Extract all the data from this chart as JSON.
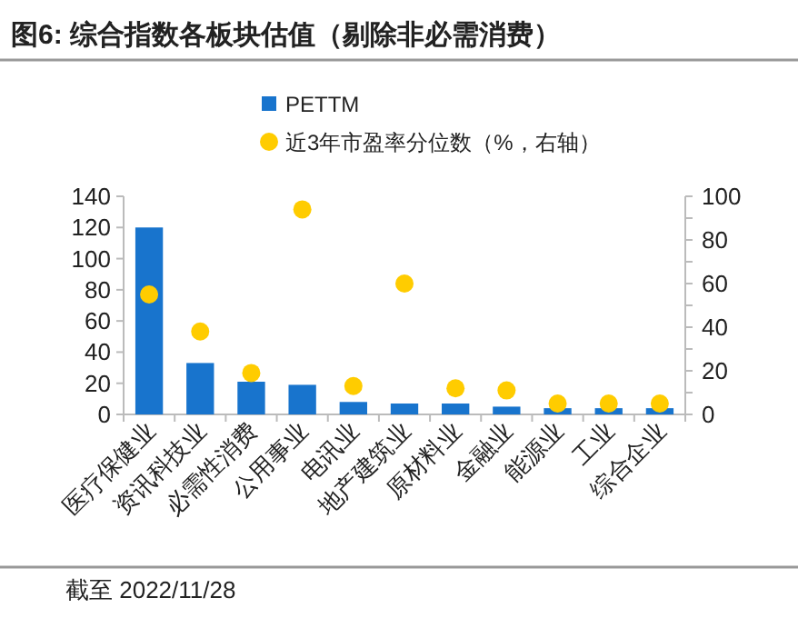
{
  "chart_data": {
    "type": "bar",
    "title": "图6:  综合指数各板块估值（剔除非必需消费）",
    "categories": [
      "医疗保健业",
      "资讯科技业",
      "必需性消费",
      "公用事业",
      "电讯业",
      "地产建筑业",
      "原材料业",
      "金融业",
      "能源业",
      "工业",
      "综合企业"
    ],
    "series": [
      {
        "name": "PETTM",
        "color": "#1874cd",
        "values": [
          120,
          33,
          21,
          19,
          8,
          7,
          7,
          5,
          4,
          4,
          4
        ]
      },
      {
        "name": "近3年市盈率分位数（%，右轴）",
        "type": "scatter",
        "axis": "y2",
        "color": "#ffcc00",
        "marker": "circle",
        "values": [
          55,
          38,
          19,
          94,
          13,
          60,
          12,
          11,
          5,
          5,
          5
        ]
      }
    ],
    "ylim": [
      0,
      140
    ],
    "yticks": [
      0,
      20,
      40,
      60,
      80,
      100,
      120,
      140
    ],
    "y2lim": [
      0,
      100
    ],
    "y2ticks": [
      0,
      {
        "value": 10,
        "label": null
      },
      20,
      {
        "value": 30,
        "label": null
      },
      40,
      {
        "value": 50,
        "label": null
      },
      60,
      {
        "value": 70,
        "label": null
      },
      80,
      {
        "value": 90,
        "label": null
      },
      100
    ],
    "legend": "top",
    "grid": false,
    "annotations": [
      "截至 2022/11/28"
    ]
  }
}
